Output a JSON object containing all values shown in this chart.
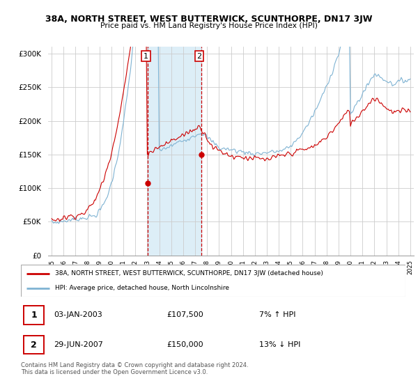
{
  "title": "38A, NORTH STREET, WEST BUTTERWICK, SCUNTHORPE, DN17 3JW",
  "subtitle": "Price paid vs. HM Land Registry's House Price Index (HPI)",
  "ylabel_ticks": [
    "£0",
    "£50K",
    "£100K",
    "£150K",
    "£200K",
    "£250K",
    "£300K"
  ],
  "ylim": [
    0,
    310000
  ],
  "yticks": [
    0,
    50000,
    100000,
    150000,
    200000,
    250000,
    300000
  ],
  "legend_line1": "38A, NORTH STREET, WEST BUTTERWICK, SCUNTHORPE, DN17 3JW (detached house)",
  "legend_line2": "HPI: Average price, detached house, North Lincolnshire",
  "sale1_label": "1",
  "sale1_date": "03-JAN-2003",
  "sale1_price": "£107,500",
  "sale1_hpi": "7% ↑ HPI",
  "sale2_label": "2",
  "sale2_date": "29-JUN-2007",
  "sale2_price": "£150,000",
  "sale2_hpi": "13% ↓ HPI",
  "footer": "Contains HM Land Registry data © Crown copyright and database right 2024.\nThis data is licensed under the Open Government Licence v3.0.",
  "red_color": "#cc0000",
  "blue_color": "#7fb3d3",
  "shade_color": "#ddeef7",
  "transaction1_x": 2003.04,
  "transaction1_y": 107500,
  "transaction2_x": 2007.5,
  "transaction2_y": 150000,
  "vline1_x": 2003.04,
  "vline2_x": 2007.5,
  "xlim_left": 1994.7,
  "xlim_right": 2025.3
}
